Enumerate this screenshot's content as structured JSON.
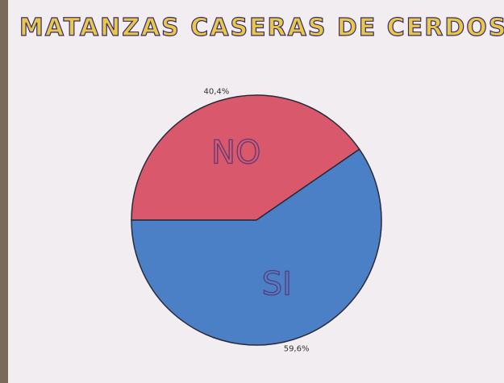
{
  "chart_data": {
    "type": "pie",
    "title": "MATANZAS CASERAS DE CERDOS",
    "categories": [
      "NO",
      "SI"
    ],
    "values": [
      40.4,
      59.6
    ],
    "value_labels": [
      "40,4%",
      "59,6%"
    ],
    "colors": [
      "#d9586c",
      "#4b80c6"
    ]
  }
}
